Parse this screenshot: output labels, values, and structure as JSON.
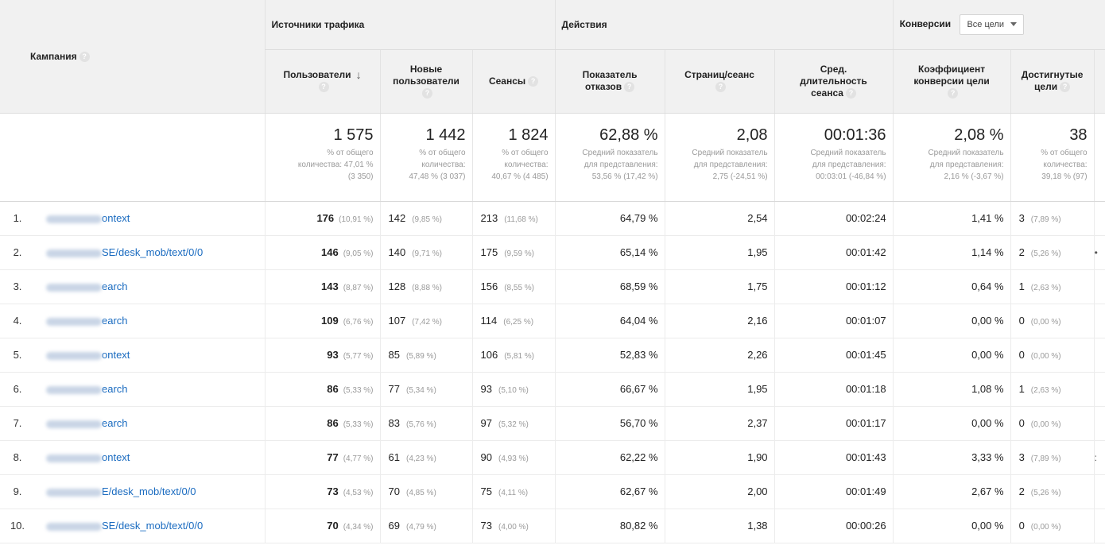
{
  "headers": {
    "campaign": "Кампания",
    "group_traffic": "Источники трафика",
    "group_actions": "Действия",
    "group_conversions": "Конверсии",
    "goals_dropdown": "Все цели",
    "users": "Пользователи",
    "new_users_1": "Новые",
    "new_users_2": "пользователи",
    "sessions": "Сеансы",
    "bounce_1": "Показатель",
    "bounce_2": "отказов",
    "pages": "Страниц/сеанс",
    "duration_1": "Сред.",
    "duration_2": "длительность",
    "duration_3": "сеанса",
    "convrate_1": "Коэффициент",
    "convrate_2": "конверсии цели",
    "goals_1": "Достигнутые",
    "goals_2": "цели"
  },
  "totals": {
    "users": "1 575",
    "users_s1": "% от общего",
    "users_s2": "количества: 47,01 %",
    "users_s3": "(3 350)",
    "new": "1 442",
    "new_s1": "% от общего",
    "new_s2": "количества:",
    "new_s3": "47,48 % (3 037)",
    "sess": "1 824",
    "sess_s1": "% от общего",
    "sess_s2": "количества:",
    "sess_s3": "40,67 % (4 485)",
    "bounce": "62,88 %",
    "bounce_s1": "Средний показатель",
    "bounce_s2": "для представления:",
    "bounce_s3": "53,56 % (17,42 %)",
    "pages": "2,08",
    "pages_s1": "Средний показатель",
    "pages_s2": "для представления:",
    "pages_s3": "2,75 (-24,51 %)",
    "dur": "00:01:36",
    "dur_s1": "Средний показатель",
    "dur_s2": "для представления:",
    "dur_s3": "00:03:01 (-46,84 %)",
    "conv": "2,08 %",
    "conv_s1": "Средний показатель",
    "conv_s2": "для представления:",
    "conv_s3": "2,16 % (-3,67 %)",
    "goals": "38",
    "goals_s1": "% от общего",
    "goals_s2": "количества:",
    "goals_s3": "39,18 % (97)"
  },
  "rows": [
    {
      "num": "1.",
      "name": "ontext",
      "users": "176",
      "users_p": "(10,91 %)",
      "new": "142",
      "new_p": "(9,85 %)",
      "sess": "213",
      "sess_p": "(11,68 %)",
      "bounce": "64,79 %",
      "pages": "2,54",
      "dur": "00:02:24",
      "conv": "1,41 %",
      "goals": "3",
      "goals_p": "(7,89 %)",
      "extra": ""
    },
    {
      "num": "2.",
      "name": "SE/desk_mob/text/0/0",
      "users": "146",
      "users_p": "(9,05 %)",
      "new": "140",
      "new_p": "(9,71 %)",
      "sess": "175",
      "sess_p": "(9,59 %)",
      "bounce": "65,14 %",
      "pages": "1,95",
      "dur": "00:01:42",
      "conv": "1,14 %",
      "goals": "2",
      "goals_p": "(5,26 %)",
      "extra": "•"
    },
    {
      "num": "3.",
      "name": "earch",
      "users": "143",
      "users_p": "(8,87 %)",
      "new": "128",
      "new_p": "(8,88 %)",
      "sess": "156",
      "sess_p": "(8,55 %)",
      "bounce": "68,59 %",
      "pages": "1,75",
      "dur": "00:01:12",
      "conv": "0,64 %",
      "goals": "1",
      "goals_p": "(2,63 %)",
      "extra": ""
    },
    {
      "num": "4.",
      "name": "earch",
      "users": "109",
      "users_p": "(6,76 %)",
      "new": "107",
      "new_p": "(7,42 %)",
      "sess": "114",
      "sess_p": "(6,25 %)",
      "bounce": "64,04 %",
      "pages": "2,16",
      "dur": "00:01:07",
      "conv": "0,00 %",
      "goals": "0",
      "goals_p": "(0,00 %)",
      "extra": ""
    },
    {
      "num": "5.",
      "name": "ontext",
      "users": "93",
      "users_p": "(5,77 %)",
      "new": "85",
      "new_p": "(5,89 %)",
      "sess": "106",
      "sess_p": "(5,81 %)",
      "bounce": "52,83 %",
      "pages": "2,26",
      "dur": "00:01:45",
      "conv": "0,00 %",
      "goals": "0",
      "goals_p": "(0,00 %)",
      "extra": ""
    },
    {
      "num": "6.",
      "name": "earch",
      "users": "86",
      "users_p": "(5,33 %)",
      "new": "77",
      "new_p": "(5,34 %)",
      "sess": "93",
      "sess_p": "(5,10 %)",
      "bounce": "66,67 %",
      "pages": "1,95",
      "dur": "00:01:18",
      "conv": "1,08 %",
      "goals": "1",
      "goals_p": "(2,63 %)",
      "extra": ""
    },
    {
      "num": "7.",
      "name": "earch",
      "users": "86",
      "users_p": "(5,33 %)",
      "new": "83",
      "new_p": "(5,76 %)",
      "sess": "97",
      "sess_p": "(5,32 %)",
      "bounce": "56,70 %",
      "pages": "2,37",
      "dur": "00:01:17",
      "conv": "0,00 %",
      "goals": "0",
      "goals_p": "(0,00 %)",
      "extra": ""
    },
    {
      "num": "8.",
      "name": "ontext",
      "users": "77",
      "users_p": "(4,77 %)",
      "new": "61",
      "new_p": "(4,23 %)",
      "sess": "90",
      "sess_p": "(4,93 %)",
      "bounce": "62,22 %",
      "pages": "1,90",
      "dur": "00:01:43",
      "conv": "3,33 %",
      "goals": "3",
      "goals_p": "(7,89 %)",
      "extra": ":"
    },
    {
      "num": "9.",
      "name": "E/desk_mob/text/0/0",
      "users": "73",
      "users_p": "(4,53 %)",
      "new": "70",
      "new_p": "(4,85 %)",
      "sess": "75",
      "sess_p": "(4,11 %)",
      "bounce": "62,67 %",
      "pages": "2,00",
      "dur": "00:01:49",
      "conv": "2,67 %",
      "goals": "2",
      "goals_p": "(5,26 %)",
      "extra": ""
    },
    {
      "num": "10.",
      "name": "SE/desk_mob/text/0/0",
      "users": "70",
      "users_p": "(4,34 %)",
      "new": "69",
      "new_p": "(4,79 %)",
      "sess": "73",
      "sess_p": "(4,00 %)",
      "bounce": "80,82 %",
      "pages": "1,38",
      "dur": "00:00:26",
      "conv": "0,00 %",
      "goals": "0",
      "goals_p": "(0,00 %)",
      "extra": ""
    }
  ]
}
